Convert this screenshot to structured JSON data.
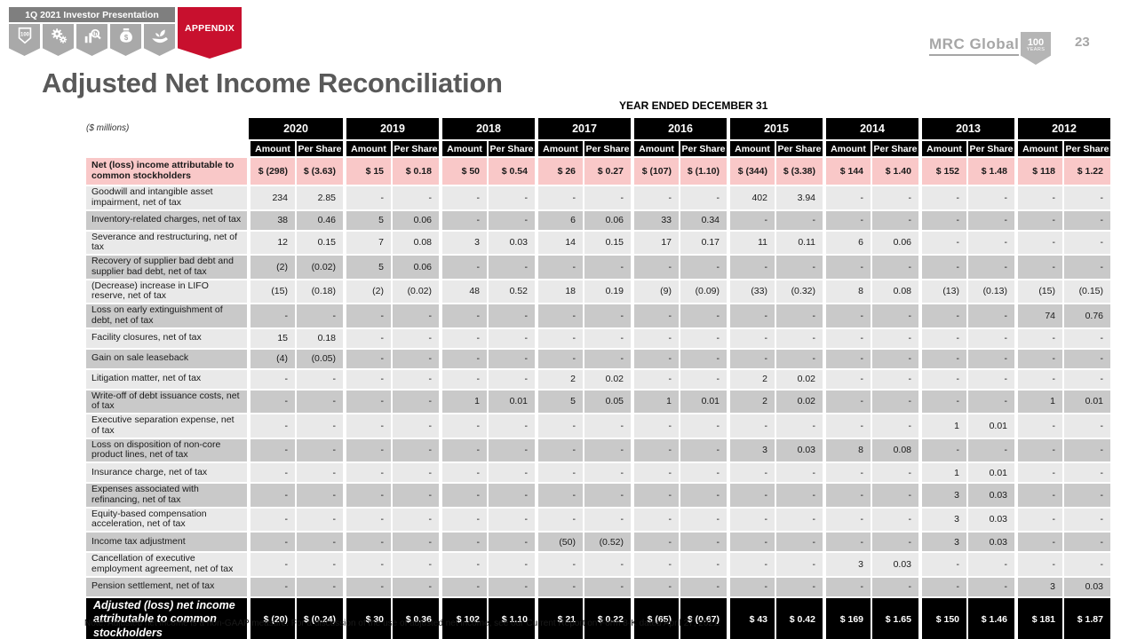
{
  "slide": {
    "page_number": "23",
    "header": {
      "banner_label": "1Q 2021 Investor Presentation",
      "nav_icons": [
        "shield-100",
        "gears",
        "chart-magnifier",
        "money-bag",
        "growth-hand"
      ],
      "appendix_label": "APPENDIX",
      "logo_text": "MRC Global",
      "logo_badge_line1": "100",
      "logo_badge_line2": "YEARS"
    },
    "title": "Adjusted Net Income Reconciliation",
    "table": {
      "caption": "YEAR ENDED DECEMBER 31",
      "units_label": "($ millions)",
      "years": [
        "2020",
        "2019",
        "2018",
        "2017",
        "2016",
        "2015",
        "2014",
        "2013",
        "2012"
      ],
      "subheaders": [
        "Amount",
        "Per Share"
      ],
      "rows": [
        {
          "label": "Net (loss) income attributable to common stockholders",
          "style": "pink",
          "values": [
            "$ (298)",
            "$ (3.63)",
            "$ 15",
            "$ 0.18",
            "$ 50",
            "$ 0.54",
            "$ 26",
            "$ 0.27",
            "$ (107)",
            "$ (1.10)",
            "$ (344)",
            "$ (3.38)",
            "$ 144",
            "$ 1.40",
            "$ 152",
            "$ 1.48",
            "$ 118",
            "$ 1.22"
          ]
        },
        {
          "label": "Goodwill and intangible asset impairment, net of tax",
          "style": "light",
          "values": [
            "234",
            "2.85",
            "-",
            "-",
            "-",
            "-",
            "-",
            "-",
            "-",
            "-",
            "402",
            "3.94",
            "-",
            "-",
            "-",
            "-",
            "-",
            "-"
          ]
        },
        {
          "label": "Inventory-related charges, net of tax",
          "style": "dark",
          "values": [
            "38",
            "0.46",
            "5",
            "0.06",
            "-",
            "-",
            "6",
            "0.06",
            "33",
            "0.34",
            "-",
            "-",
            "-",
            "-",
            "-",
            "-",
            "-",
            "-"
          ]
        },
        {
          "label": "Severance and restructuring, net of tax",
          "style": "light",
          "values": [
            "12",
            "0.15",
            "7",
            "0.08",
            "3",
            "0.03",
            "14",
            "0.15",
            "17",
            "0.17",
            "11",
            "0.11",
            "6",
            "0.06",
            "-",
            "-",
            "-",
            "-"
          ]
        },
        {
          "label": "Recovery of supplier bad debt and supplier bad debt, net of tax",
          "style": "dark",
          "values": [
            "(2)",
            "(0.02)",
            "5",
            "0.06",
            "-",
            "-",
            "-",
            "-",
            "-",
            "-",
            "-",
            "-",
            "-",
            "-",
            "-",
            "-",
            "-",
            "-"
          ]
        },
        {
          "label": "(Decrease) increase in LIFO reserve, net of tax",
          "style": "light",
          "values": [
            "(15)",
            "(0.18)",
            "(2)",
            "(0.02)",
            "48",
            "0.52",
            "18",
            "0.19",
            "(9)",
            "(0.09)",
            "(33)",
            "(0.32)",
            "8",
            "0.08",
            "(13)",
            "(0.13)",
            "(15)",
            "(0.15)"
          ]
        },
        {
          "label": "Loss on early extinguishment of debt, net of tax",
          "style": "dark",
          "values": [
            "-",
            "-",
            "-",
            "-",
            "-",
            "-",
            "-",
            "-",
            "-",
            "-",
            "-",
            "-",
            "-",
            "-",
            "-",
            "-",
            "74",
            "0.76"
          ]
        },
        {
          "label": "Facility closures, net of tax",
          "style": "light",
          "values": [
            "15",
            "0.18",
            "-",
            "-",
            "-",
            "-",
            "-",
            "-",
            "-",
            "-",
            "-",
            "-",
            "-",
            "-",
            "-",
            "-",
            "-",
            "-"
          ]
        },
        {
          "label": "Gain on sale leaseback",
          "style": "dark",
          "values": [
            "(4)",
            "(0.05)",
            "-",
            "-",
            "-",
            "-",
            "-",
            "-",
            "-",
            "-",
            "-",
            "-",
            "-",
            "-",
            "-",
            "-",
            "-",
            "-"
          ]
        },
        {
          "label": "Litigation matter, net of tax",
          "style": "light",
          "values": [
            "-",
            "-",
            "-",
            "-",
            "-",
            "-",
            "2",
            "0.02",
            "-",
            "-",
            "2",
            "0.02",
            "-",
            "-",
            "-",
            "-",
            "-",
            "-"
          ]
        },
        {
          "label": "Write-off of debt issuance costs, net of tax",
          "style": "dark",
          "values": [
            "-",
            "-",
            "-",
            "-",
            "1",
            "0.01",
            "5",
            "0.05",
            "1",
            "0.01",
            "2",
            "0.02",
            "-",
            "-",
            "-",
            "-",
            "1",
            "0.01"
          ]
        },
        {
          "label": "Executive separation expense, net of tax",
          "style": "light",
          "values": [
            "-",
            "-",
            "-",
            "-",
            "-",
            "-",
            "-",
            "-",
            "-",
            "-",
            "-",
            "-",
            "-",
            "-",
            "1",
            "0.01",
            "-",
            "-"
          ]
        },
        {
          "label": "Loss on disposition of non-core product lines, net of tax",
          "style": "dark",
          "values": [
            "-",
            "-",
            "-",
            "-",
            "-",
            "-",
            "-",
            "-",
            "-",
            "-",
            "3",
            "0.03",
            "8",
            "0.08",
            "-",
            "-",
            "-",
            "-"
          ]
        },
        {
          "label": "Insurance charge, net of tax",
          "style": "light",
          "values": [
            "-",
            "-",
            "-",
            "-",
            "-",
            "-",
            "-",
            "-",
            "-",
            "-",
            "-",
            "-",
            "-",
            "-",
            "1",
            "0.01",
            "-",
            "-"
          ]
        },
        {
          "label": "Expenses associated with refinancing, net of tax",
          "style": "dark",
          "values": [
            "-",
            "-",
            "-",
            "-",
            "-",
            "-",
            "-",
            "-",
            "-",
            "-",
            "-",
            "-",
            "-",
            "-",
            "3",
            "0.03",
            "-",
            "-"
          ]
        },
        {
          "label": "Equity-based compensation acceleration, net of tax",
          "style": "light",
          "values": [
            "-",
            "-",
            "-",
            "-",
            "-",
            "-",
            "-",
            "-",
            "-",
            "-",
            "-",
            "-",
            "-",
            "-",
            "3",
            "0.03",
            "-",
            "-"
          ]
        },
        {
          "label": "Income tax adjustment",
          "style": "dark",
          "values": [
            "-",
            "-",
            "-",
            "-",
            "-",
            "-",
            "(50)",
            "(0.52)",
            "-",
            "-",
            "-",
            "-",
            "-",
            "-",
            "3",
            "0.03",
            "-",
            "-"
          ]
        },
        {
          "label": "Cancellation of executive employment agreement, net of tax",
          "style": "light",
          "values": [
            "-",
            "-",
            "-",
            "-",
            "-",
            "-",
            "-",
            "-",
            "-",
            "-",
            "-",
            "-",
            "3",
            "0.03",
            "-",
            "-",
            "-",
            "-"
          ]
        },
        {
          "label": "Pension settlement, net of tax",
          "style": "dark",
          "values": [
            "-",
            "-",
            "-",
            "-",
            "-",
            "-",
            "-",
            "-",
            "-",
            "-",
            "-",
            "-",
            "-",
            "-",
            "-",
            "-",
            "3",
            "0.03"
          ]
        },
        {
          "label": "Adjusted (loss) net income attributable to common stockholders",
          "style": "total",
          "values": [
            "$ (20)",
            "$ (0.24)",
            "$ 30",
            "$ 0.36",
            "$ 102",
            "$ 1.10",
            "$ 21",
            "$ 0.22",
            "$ (65)",
            "$ (0.67)",
            "$ 43",
            "$ 0.42",
            "$ 169",
            "$ 1.65",
            "$ 150",
            "$ 1.46",
            "$ 181",
            "$ 1.87"
          ]
        }
      ]
    },
    "note": "Note: Adjusted net income is a non-GAAP measure. For a discussion of the use of adjusted net income, see our Current Report on Form 8-K dated April 27, 2021."
  },
  "colors": {
    "brand_red": "#c8102e",
    "header_black": "#000000",
    "row_pink": "#f9c8c8",
    "row_light": "#e9e9e9",
    "row_dark": "#c9c9c9",
    "banner_gray": "#7f7f7f",
    "tab_gray": "#a9a9a9",
    "title_gray": "#595959",
    "logo_gray": "#a6a6a6"
  }
}
